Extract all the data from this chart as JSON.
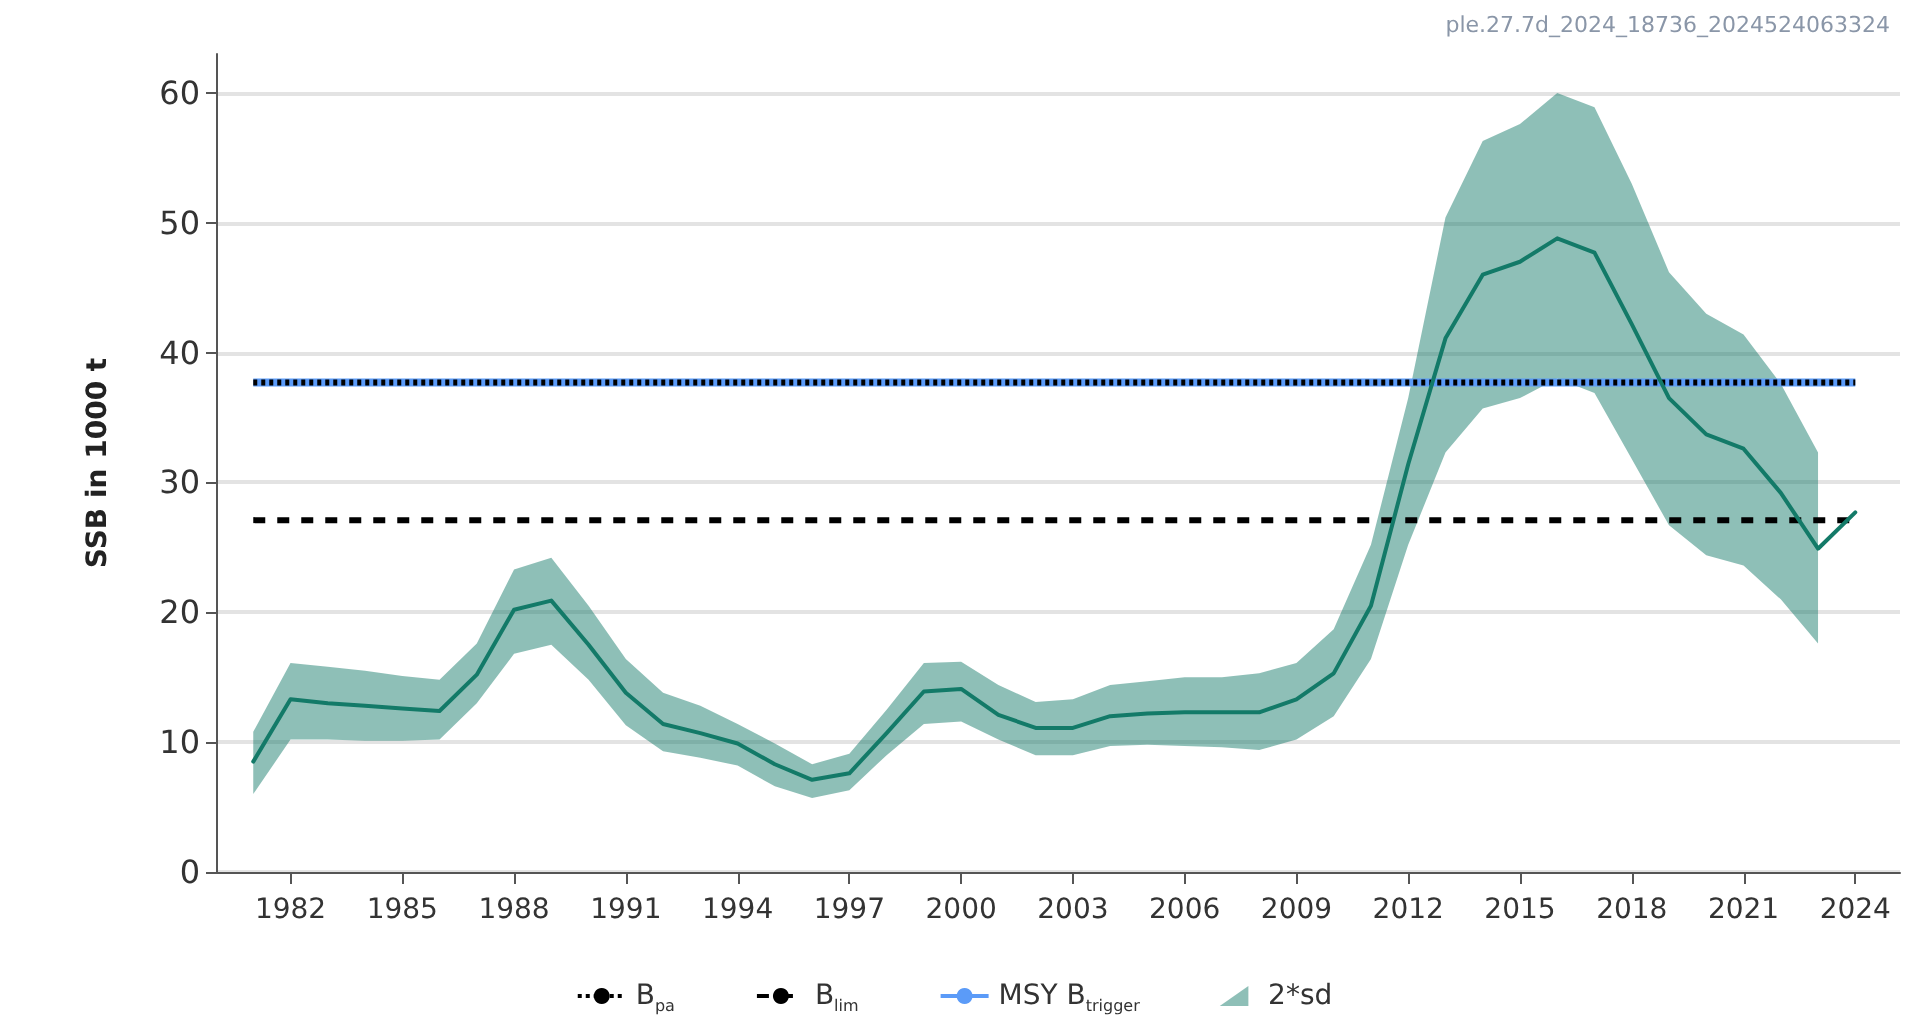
{
  "chart_data": {
    "type": "line",
    "ylabel": "SSB in 1000 t",
    "annotations": [
      "ple.27.7d_2024_18736_2024524063324"
    ],
    "x": [
      1981,
      1982,
      1983,
      1984,
      1985,
      1986,
      1987,
      1988,
      1989,
      1990,
      1991,
      1992,
      1993,
      1994,
      1995,
      1996,
      1997,
      1998,
      1999,
      2000,
      2001,
      2002,
      2003,
      2004,
      2005,
      2006,
      2007,
      2008,
      2009,
      2010,
      2011,
      2012,
      2013,
      2014,
      2015,
      2016,
      2017,
      2018,
      2019,
      2020,
      2021,
      2022,
      2023,
      2024
    ],
    "series": [
      {
        "name": "2*sd",
        "color": "#137a68",
        "values": [
          8.5,
          13.3,
          13.0,
          12.8,
          12.6,
          12.4,
          15.2,
          20.2,
          20.9,
          17.5,
          13.8,
          11.4,
          10.7,
          9.9,
          8.3,
          7.1,
          7.6,
          10.7,
          13.9,
          14.1,
          12.1,
          11.1,
          11.1,
          12.0,
          12.2,
          12.3,
          12.3,
          12.3,
          13.3,
          15.3,
          20.5,
          31.4,
          41.1,
          46.0,
          47.0,
          48.8,
          47.7,
          42.2,
          36.5,
          33.7,
          32.6,
          29.2,
          24.9,
          27.7
        ],
        "lower": [
          6.0,
          10.2,
          10.2,
          10.1,
          10.1,
          10.2,
          13.0,
          16.8,
          17.5,
          14.8,
          11.3,
          9.3,
          8.8,
          8.2,
          6.6,
          5.7,
          6.3,
          9.0,
          11.4,
          11.6,
          10.2,
          9.0,
          9.0,
          9.7,
          9.8,
          9.7,
          9.6,
          9.4,
          10.2,
          12.0,
          16.4,
          25.2,
          32.3,
          35.7,
          36.5,
          38.0,
          36.9,
          31.8,
          26.7,
          24.4,
          23.6,
          21.0,
          17.6,
          null
        ],
        "upper": [
          10.8,
          16.1,
          15.8,
          15.5,
          15.1,
          14.8,
          17.6,
          23.3,
          24.2,
          20.5,
          16.4,
          13.8,
          12.8,
          11.4,
          9.9,
          8.3,
          9.1,
          12.5,
          16.1,
          16.2,
          14.4,
          13.1,
          13.3,
          14.4,
          14.7,
          15.0,
          15.0,
          15.3,
          16.1,
          18.7,
          25.2,
          36.5,
          50.4,
          56.3,
          57.6,
          60.0,
          58.9,
          53.0,
          46.2,
          43.0,
          41.4,
          37.6,
          32.3,
          null
        ]
      }
    ],
    "ref_lines": [
      {
        "axis": "y",
        "value": 37.7,
        "label": "B$_{pa}$",
        "color": "#000000",
        "line_style": "dotted"
      },
      {
        "axis": "y",
        "value": 27.1,
        "label": "B$_{lim}$",
        "color": "#000000",
        "line_style": "dashed"
      },
      {
        "axis": "y",
        "value": 37.7,
        "label": "MSY B$_{trigger}$",
        "color": "#5b9bf8",
        "line_style": "solid"
      }
    ],
    "xlim": [
      1980,
      2025.2
    ],
    "xticks": [
      1982,
      1985,
      1988,
      1991,
      1994,
      1997,
      2000,
      2003,
      2006,
      2009,
      2012,
      2015,
      2018,
      2021,
      2024
    ],
    "ylim": [
      0,
      63
    ],
    "yticks": [
      0,
      10,
      20,
      30,
      40,
      50,
      60
    ],
    "grid": "y",
    "legend": "bottom",
    "marker": "none",
    "line_style": "solid"
  }
}
